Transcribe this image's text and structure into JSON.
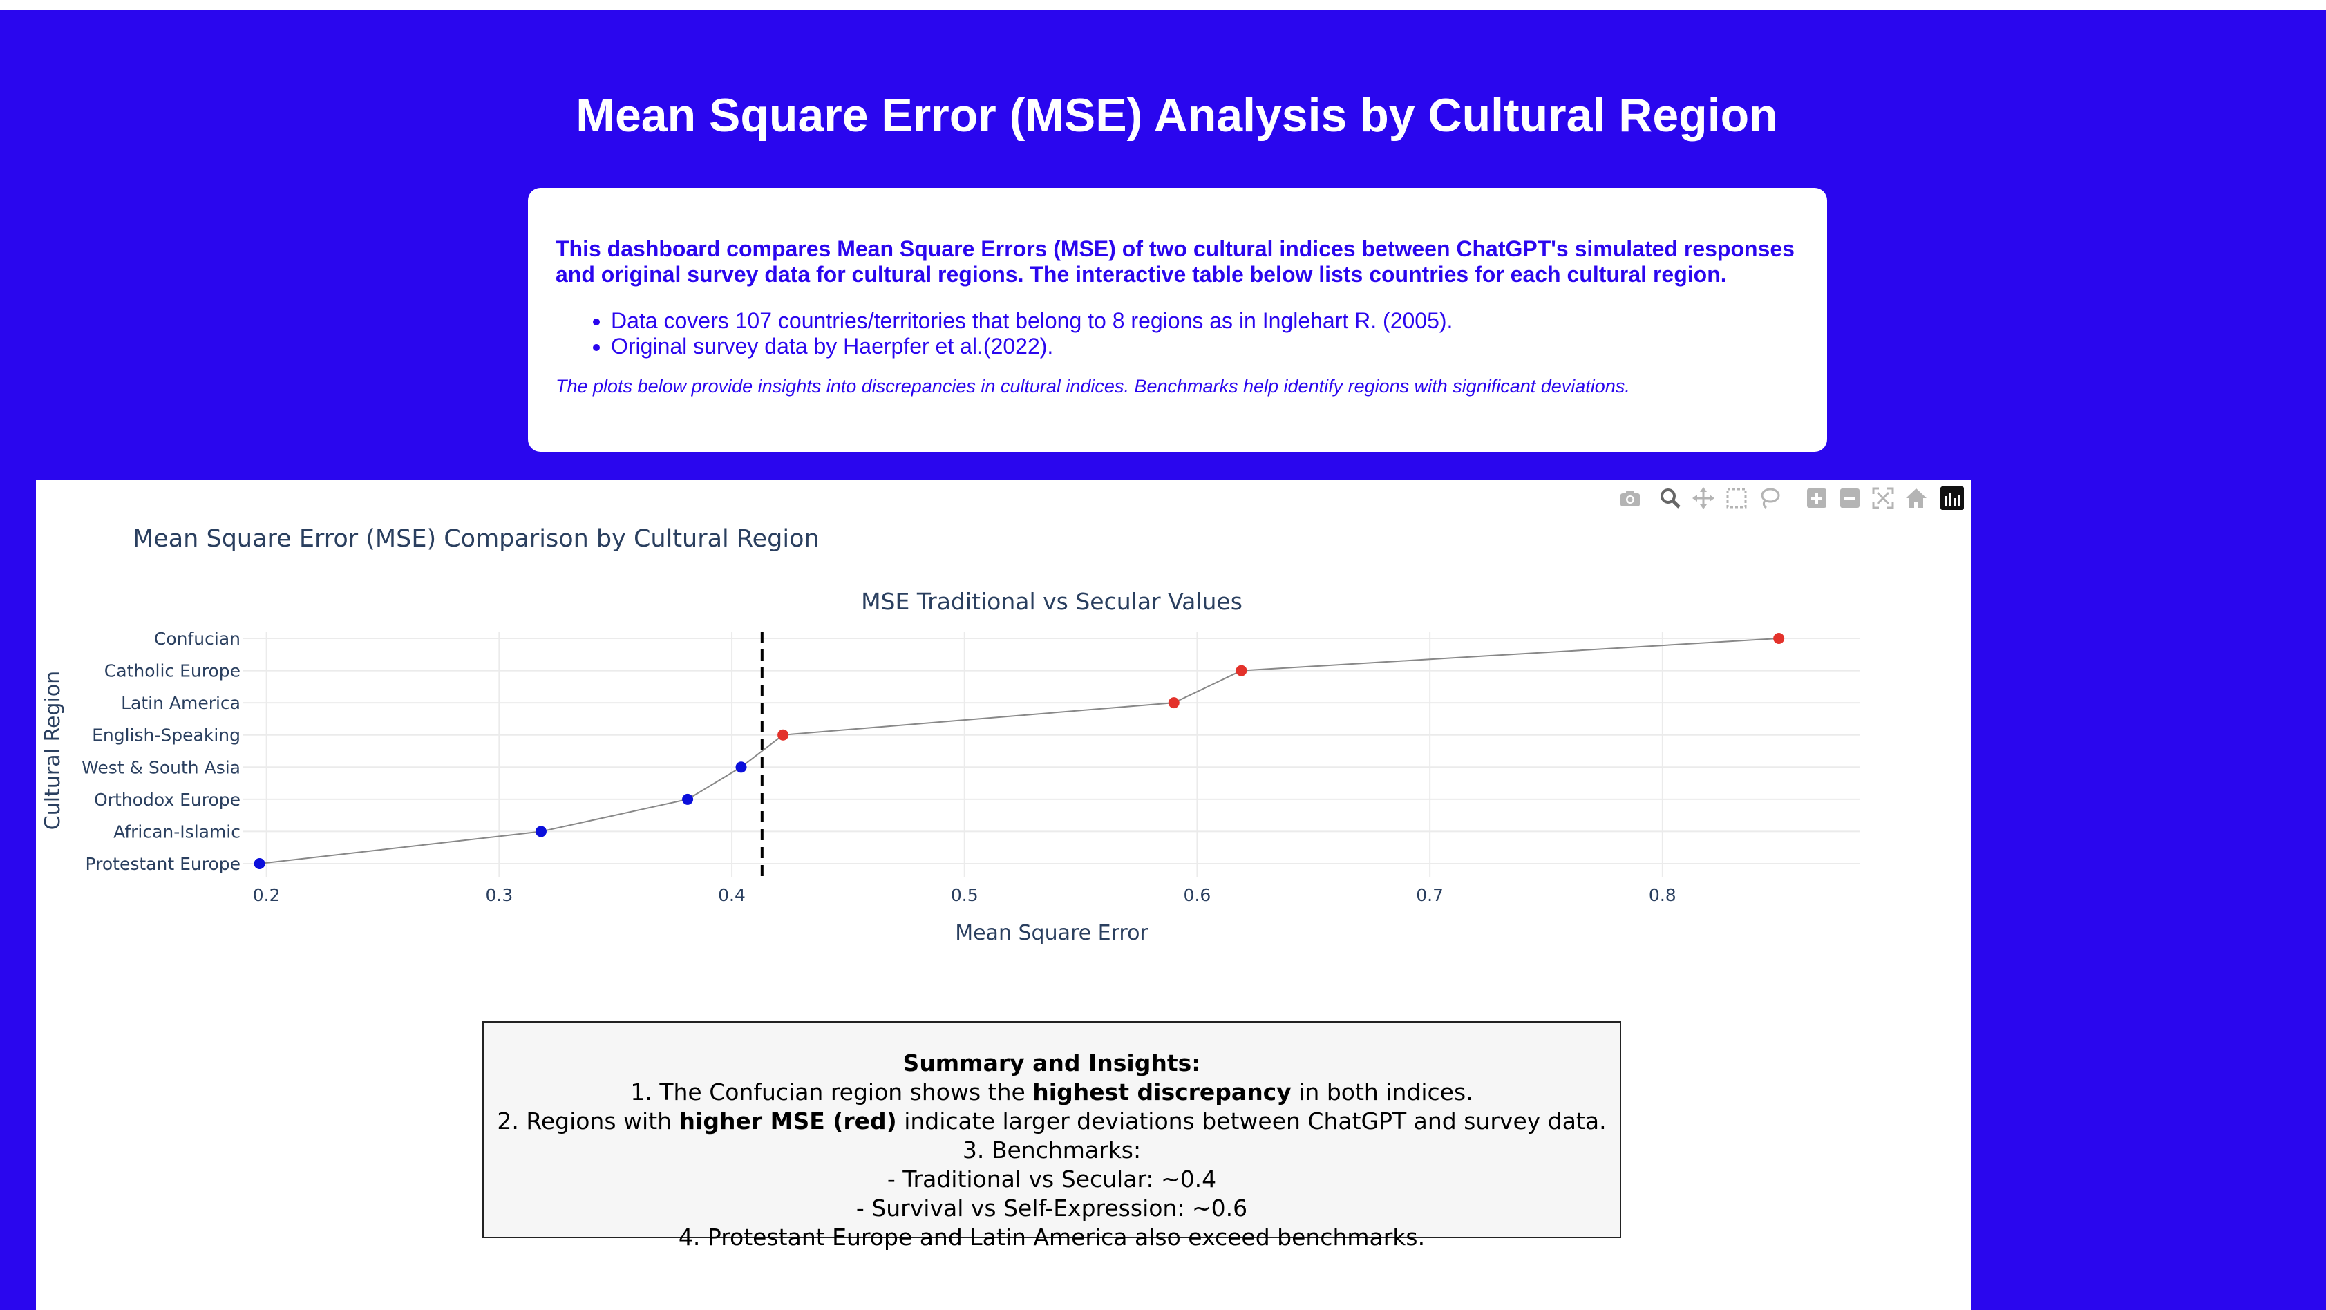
{
  "page": {
    "title": "Mean Square Error (MSE) Analysis by Cultural Region"
  },
  "info": {
    "lead": "This dashboard compares Mean Square Errors (MSE) of two cultural indices between ChatGPT's simulated responses and original survey data for cultural regions. The interactive table below lists countries for each cultural region.",
    "bullets": [
      "Data covers 107 countries/territories that belong to 8 regions as in Inglehart R. (2005).",
      "Original survey data by Haerpfer et al.(2022)."
    ],
    "note": "The plots below provide insights into discrepancies in cultural indices. Benchmarks help identify regions with significant deviations."
  },
  "modebar": {
    "icons": [
      "camera-icon",
      "zoom-icon",
      "pan-icon",
      "box-select-icon",
      "lasso-icon",
      "zoom-in-icon",
      "zoom-out-icon",
      "autoscale-icon",
      "reset-axes-icon",
      "plotly-logo-icon"
    ]
  },
  "figure": {
    "title": "Mean Square Error (MSE) Comparison by Cultural Region"
  },
  "chart_data": {
    "type": "scatter",
    "mode": "lines+markers",
    "title": "MSE Traditional vs Secular Values",
    "xlabel": "Mean Square Error",
    "ylabel": "Cultural Region",
    "xlim": [
      0.19,
      0.885
    ],
    "x_ticks": [
      0.2,
      0.3,
      0.4,
      0.5,
      0.6,
      0.7,
      0.8
    ],
    "x_tick_labels": [
      "0.2",
      "0.3",
      "0.4",
      "0.5",
      "0.6",
      "0.7",
      "0.8"
    ],
    "categories": [
      "Protestant Europe",
      "African-Islamic",
      "Orthodox Europe",
      "West & South Asia",
      "English-Speaking",
      "Latin America",
      "Catholic Europe",
      "Confucian"
    ],
    "x": [
      0.197,
      0.318,
      0.381,
      0.404,
      0.422,
      0.59,
      0.619,
      0.85
    ],
    "marker_colors": [
      "#0b0fdb",
      "#0b0fdb",
      "#0b0fdb",
      "#0b0fdb",
      "#e3322b",
      "#e3322b",
      "#e3322b",
      "#e3322b"
    ],
    "line_color": "#888888",
    "benchmark": {
      "x": 0.413,
      "style": "dashed",
      "color": "#000000"
    },
    "grid": true,
    "legend": false
  },
  "summary": {
    "title": "Summary and Insights:",
    "l1_pre": "1. The Confucian region shows the ",
    "l1_bold": "highest discrepancy",
    "l1_post": " in both indices.",
    "l2_pre": "2. Regions with ",
    "l2_bold": "higher MSE (red)",
    "l2_post": " indicate larger deviations between ChatGPT and survey data.",
    "l3": "3. Benchmarks:",
    "l4": "- Traditional vs Secular: ~0.4",
    "l5": "- Survival vs Self-Expression: ~0.6",
    "l6": "4. Protestant Europe and Latin America also exceed benchmarks."
  },
  "colors": {
    "background": "#2a06ee",
    "card": "#ffffff",
    "accent_text": "#2a06ee",
    "high_mse": "#e3322b",
    "low_mse": "#0b0fdb"
  }
}
